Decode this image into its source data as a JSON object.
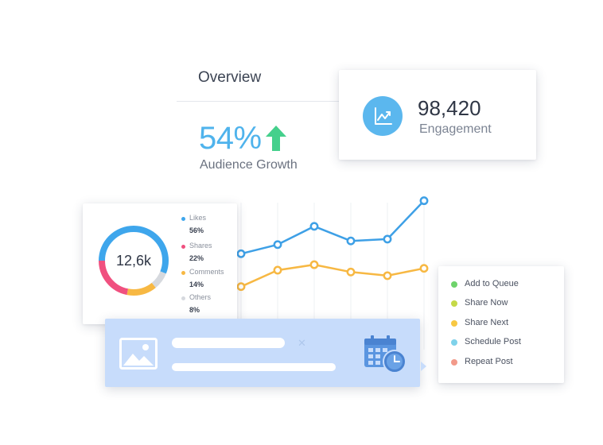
{
  "overview": {
    "title": "Overview",
    "growth_value": "54%",
    "growth_label": "Audience Growth",
    "growth_trend": "up",
    "growth_color": "#4fb3ec",
    "arrow_color": "#45d08c"
  },
  "engagement": {
    "value": "98,420",
    "label": "Engagement",
    "icon": "trend-chart-icon",
    "icon_color": "#5bb7ee"
  },
  "chart_data": {
    "type": "line",
    "x": [
      1,
      2,
      3,
      4,
      5,
      6
    ],
    "ylim": [
      0,
      100
    ],
    "grid": "vertical",
    "series": [
      {
        "color": "#3ea0e6",
        "values": [
          59,
          64,
          74,
          66,
          67,
          88
        ]
      },
      {
        "color": "#f7b843",
        "values": [
          41,
          50,
          53,
          49,
          47,
          51
        ]
      }
    ]
  },
  "donut": {
    "center_label": "12,6k",
    "segments": [
      {
        "name": "Likes",
        "pct_label": "56%",
        "value": 56,
        "color": "#3ea6ec"
      },
      {
        "name": "Shares",
        "pct_label": "22%",
        "value": 22,
        "color": "#f0507f"
      },
      {
        "name": "Comments",
        "pct_label": "14%",
        "value": 14,
        "color": "#f7b843"
      },
      {
        "name": "Others",
        "pct_label": "8%",
        "value": 8,
        "color": "#d6d9de"
      }
    ]
  },
  "post": {
    "image_icon": "image-icon",
    "close_icon": "close-icon",
    "schedule_icon": "calendar-clock-icon",
    "background": "#c7dcfb"
  },
  "actions": [
    {
      "label": "Add to Queue",
      "color": "#6ed36b"
    },
    {
      "label": "Share Now",
      "color": "#c5d948"
    },
    {
      "label": "Share Next",
      "color": "#f7c843"
    },
    {
      "label": "Schedule Post",
      "color": "#7fd2ea"
    },
    {
      "label": "Repeat Post",
      "color": "#f29a8a"
    }
  ]
}
